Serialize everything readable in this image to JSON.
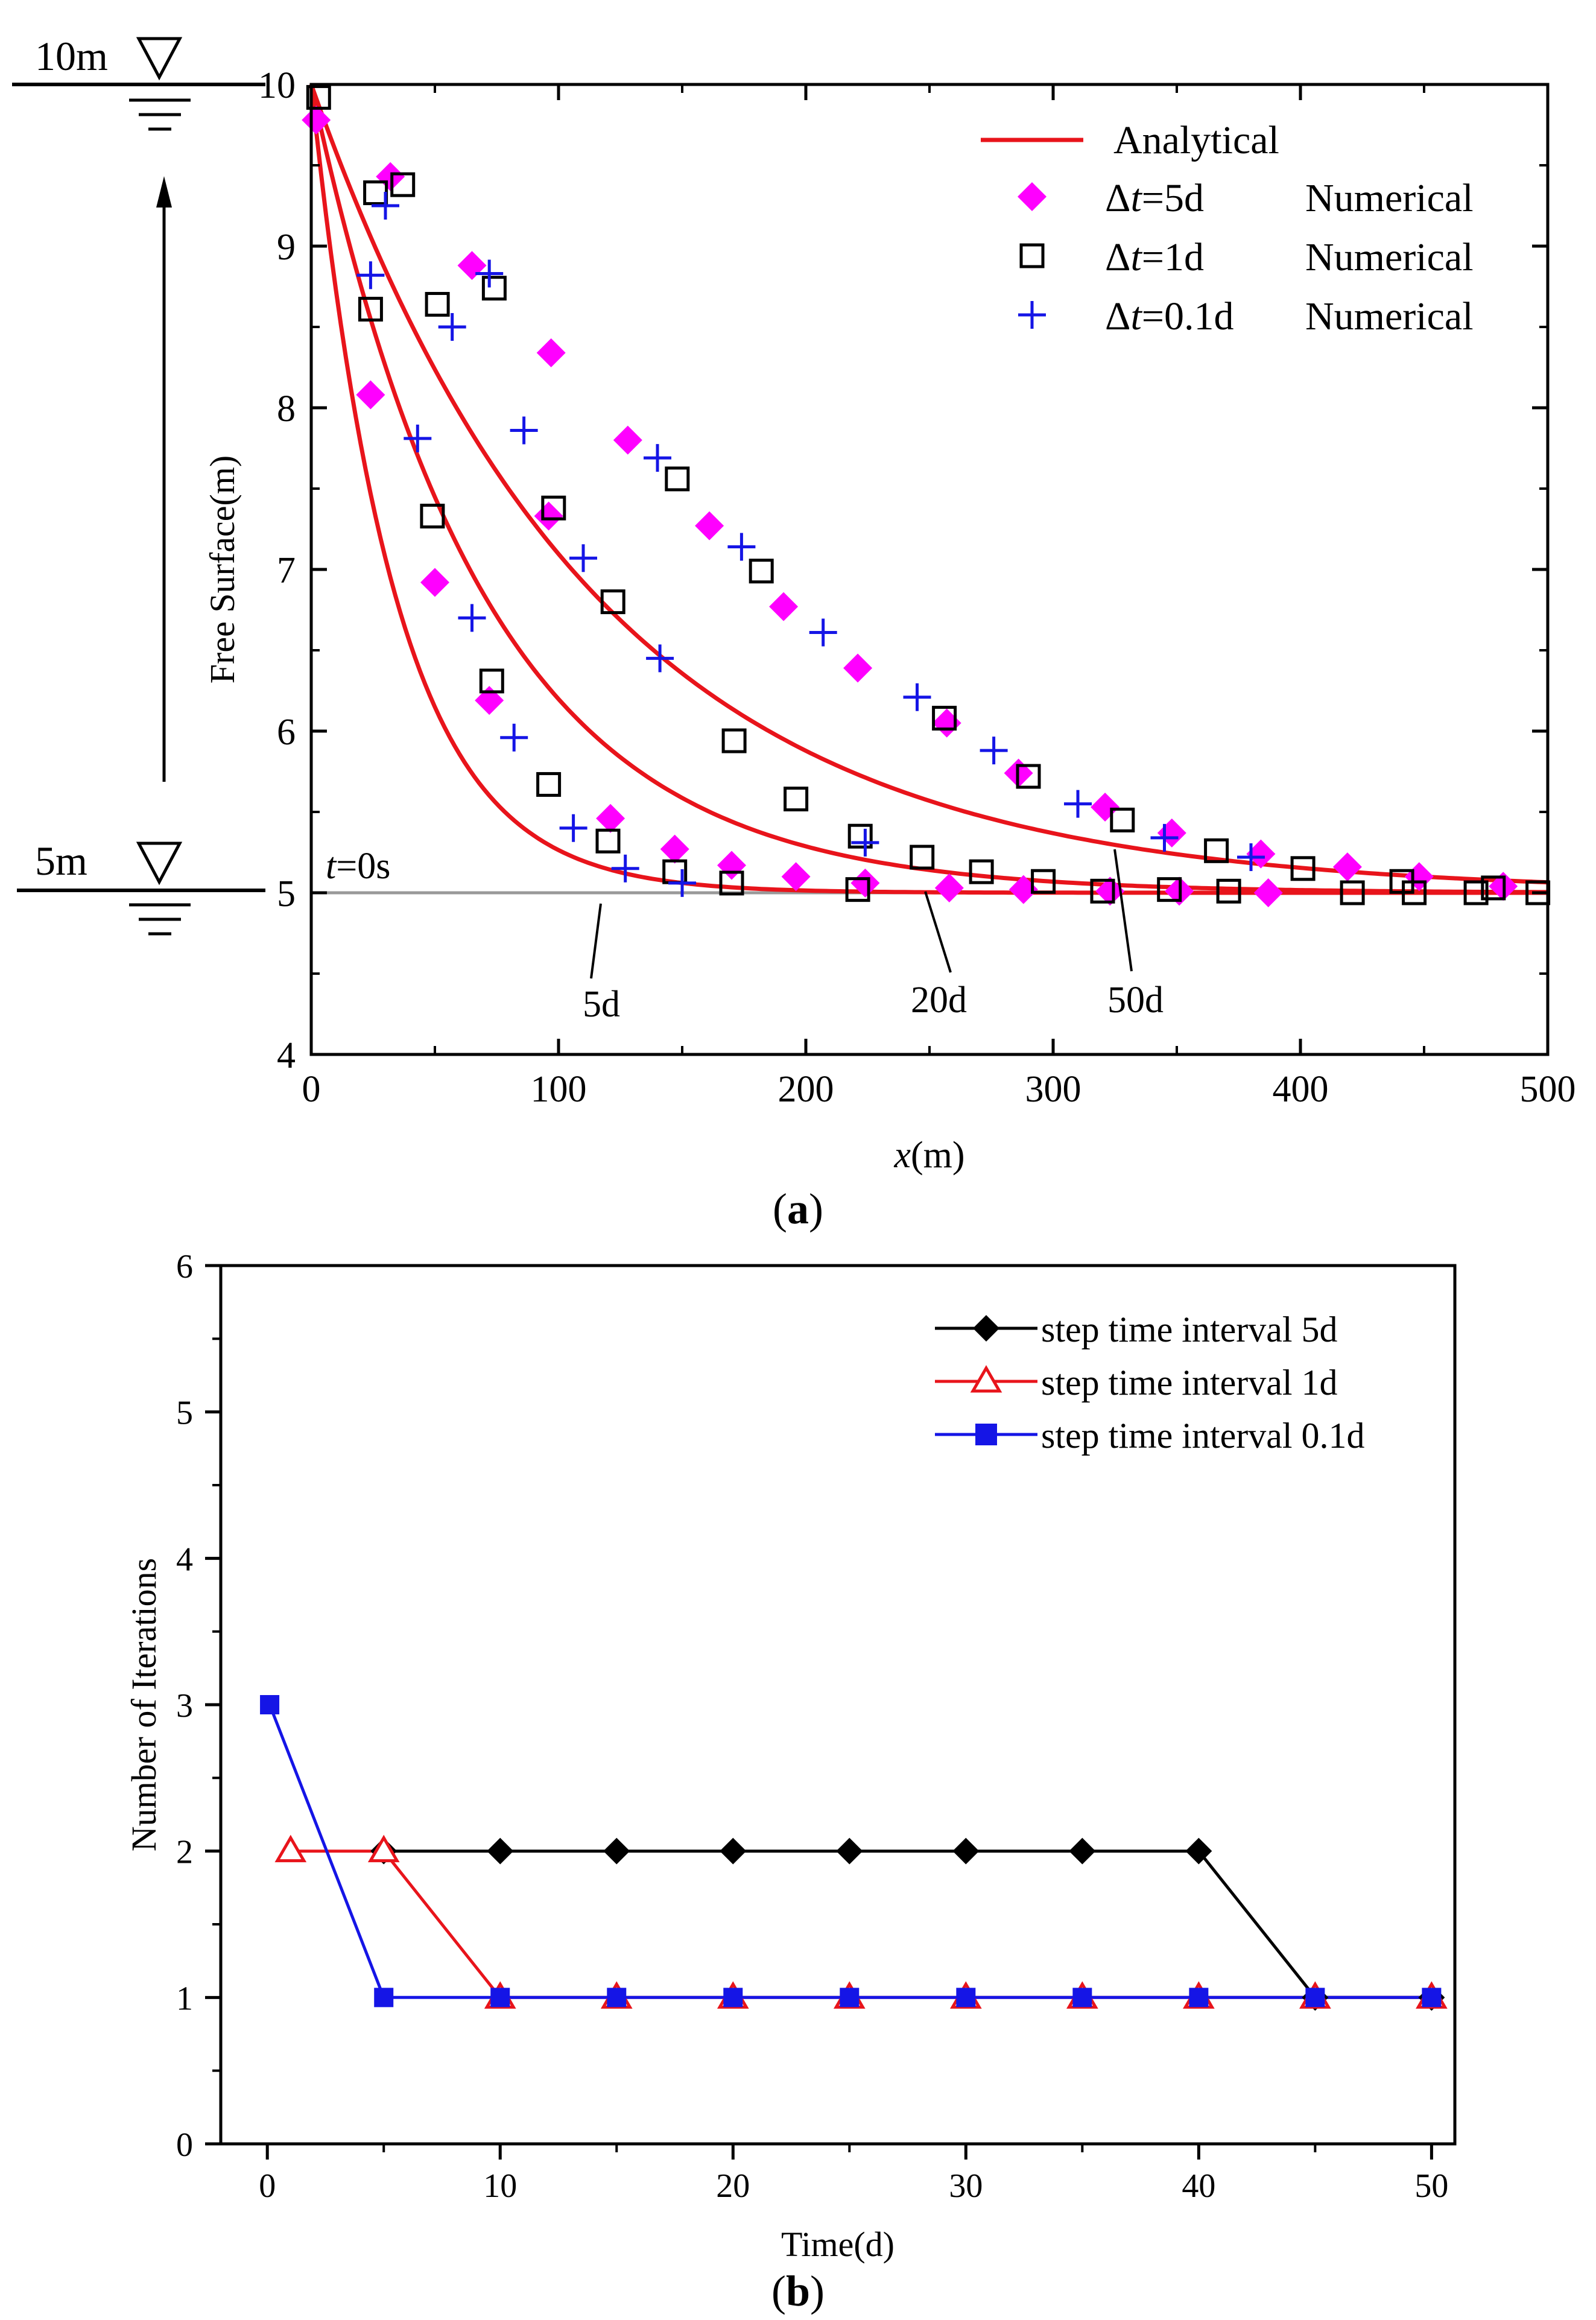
{
  "chart_data": [
    {
      "panel": "a",
      "type": "line",
      "panel_label": "(a)",
      "panel_label_letter": "a",
      "xlabel": "x(m)",
      "xlabel_italic": "x",
      "xlabel_unit": "(m)",
      "ylabel": "Free Surface(m)",
      "xlim": [
        0,
        500
      ],
      "ylim": [
        4,
        10
      ],
      "xticks": [
        0,
        100,
        200,
        300,
        400,
        500
      ],
      "yticks": [
        4,
        5,
        6,
        7,
        8,
        9,
        10
      ],
      "colors": {
        "analytical": "#e8141b",
        "dt5": "#ff00ff",
        "dt1": "#000000",
        "dt01": "#1515e6",
        "baseline": "#999999"
      },
      "legend": {
        "analytical": "Analytical",
        "dt5_prefix": "Δ",
        "dt5_italic": "t",
        "dt5_suffix": "=5d",
        "dt1_prefix": "Δ",
        "dt1_italic": "t",
        "dt1_suffix": "=1d",
        "dt01_prefix": "Δ",
        "dt01_italic": "t",
        "dt01_suffix": "=0.1d",
        "numerical": "Numerical"
      },
      "annotations": {
        "t0_italic": "t",
        "t0_rest": "=0s",
        "curve_5d": "5d",
        "curve_20d": "20d",
        "curve_50d": "50d",
        "level_top": "10m",
        "level_bottom": "5m"
      },
      "baseline_level": 5,
      "analytical_curves": [
        {
          "name": "5d",
          "decay_length_m": 34
        },
        {
          "name": "20d",
          "decay_length_m": 70
        },
        {
          "name": "50d",
          "decay_length_m": 115
        }
      ],
      "series": [
        {
          "name": "Δt=5d Numerical",
          "marker": "diamond",
          "x": [
            2,
            24,
            32,
            50,
            65,
            72,
            97,
            96,
            121,
            128,
            147,
            161,
            170,
            191,
            196,
            221,
            224,
            257,
            258,
            286,
            288,
            321,
            323,
            348,
            351,
            384,
            387,
            419,
            448,
            482
          ],
          "y": [
            9.78,
            8.08,
            9.43,
            6.92,
            8.88,
            6.19,
            8.34,
            7.33,
            5.46,
            7.8,
            5.27,
            7.27,
            5.17,
            6.77,
            5.1,
            6.39,
            5.06,
            6.05,
            5.03,
            5.74,
            5.02,
            5.53,
            5.01,
            5.37,
            5.01,
            5.24,
            5.0,
            5.16,
            5.1,
            5.04
          ]
        },
        {
          "name": "Δt=1d Numerical",
          "marker": "square",
          "x": [
            3,
            24,
            26,
            37,
            49,
            51,
            73,
            74,
            96,
            98,
            120,
            122,
            147,
            148,
            170,
            171,
            182,
            196,
            221,
            222,
            247,
            256,
            271,
            290,
            296,
            320,
            328,
            347,
            366,
            371,
            401,
            421,
            441,
            446,
            471,
            478,
            496
          ],
          "y": [
            9.92,
            8.61,
            9.33,
            9.38,
            7.33,
            8.64,
            6.31,
            8.74,
            5.67,
            7.38,
            5.32,
            6.8,
            5.13,
            7.56,
            5.06,
            5.94,
            6.99,
            5.58,
            5.02,
            5.35,
            5.22,
            6.08,
            5.13,
            5.72,
            5.07,
            5.01,
            5.45,
            5.02,
            5.26,
            5.01,
            5.15,
            5.0,
            5.07,
            5.0,
            5.0,
            5.03,
            5.0
          ]
        },
        {
          "name": "Δt=0.1d Numerical",
          "marker": "plus",
          "x": [
            24,
            30,
            43,
            57,
            65,
            72,
            82,
            86,
            106,
            110,
            127,
            140,
            141,
            150,
            174,
            207,
            224,
            245,
            276,
            310,
            345,
            380
          ],
          "y": [
            8.82,
            9.25,
            7.81,
            8.5,
            6.7,
            8.83,
            5.96,
            7.86,
            5.4,
            7.07,
            5.15,
            7.69,
            6.45,
            5.06,
            7.14,
            6.61,
            5.31,
            6.21,
            5.88,
            5.55,
            5.34,
            5.22
          ]
        }
      ]
    },
    {
      "panel": "b",
      "type": "line",
      "panel_label": "(b)",
      "panel_label_letter": "b",
      "xlabel": "Time(d)",
      "ylabel": "Number of Iterations",
      "xlim": [
        -2,
        51
      ],
      "ylim": [
        0,
        6
      ],
      "xticks": [
        0,
        10,
        20,
        30,
        40,
        50
      ],
      "yticks": [
        0,
        1,
        2,
        3,
        4,
        5,
        6
      ],
      "series": [
        {
          "name": "step time interval 5d",
          "color": "#000000",
          "marker": "filled-diamond",
          "x": [
            5,
            10,
            15,
            20,
            25,
            30,
            35,
            40,
            45,
            50
          ],
          "values": [
            2,
            2,
            2,
            2,
            2,
            2,
            2,
            2,
            1,
            1
          ]
        },
        {
          "name": "step time interval 1d",
          "color": "#e8141b",
          "marker": "open-triangle",
          "x": [
            1,
            5,
            10,
            15,
            20,
            25,
            30,
            35,
            40,
            45,
            50
          ],
          "values": [
            2,
            2,
            1,
            1,
            1,
            1,
            1,
            1,
            1,
            1,
            1
          ]
        },
        {
          "name": "step time interval 0.1d",
          "color": "#1515e6",
          "marker": "filled-square",
          "x": [
            0.1,
            5,
            10,
            15,
            20,
            25,
            30,
            35,
            40,
            45,
            50
          ],
          "values": [
            3,
            1,
            1,
            1,
            1,
            1,
            1,
            1,
            1,
            1,
            1
          ]
        }
      ]
    }
  ]
}
